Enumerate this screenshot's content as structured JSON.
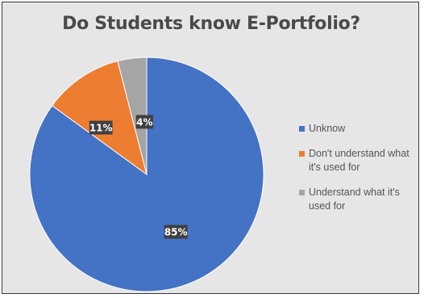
{
  "chart_data": {
    "type": "pie",
    "title": "Do Students know E-Portfolio?",
    "categories": [
      "Unknow",
      "Don't understand what it's used for",
      "Understand what it's used for"
    ],
    "values": [
      85,
      11,
      4
    ],
    "data_labels": [
      "85%",
      "11%",
      "4%"
    ],
    "colors": [
      "#4472c4",
      "#ed7d31",
      "#a5a5a5"
    ],
    "legend_position": "right",
    "start_angle_deg": 0,
    "direction": "clockwise"
  }
}
